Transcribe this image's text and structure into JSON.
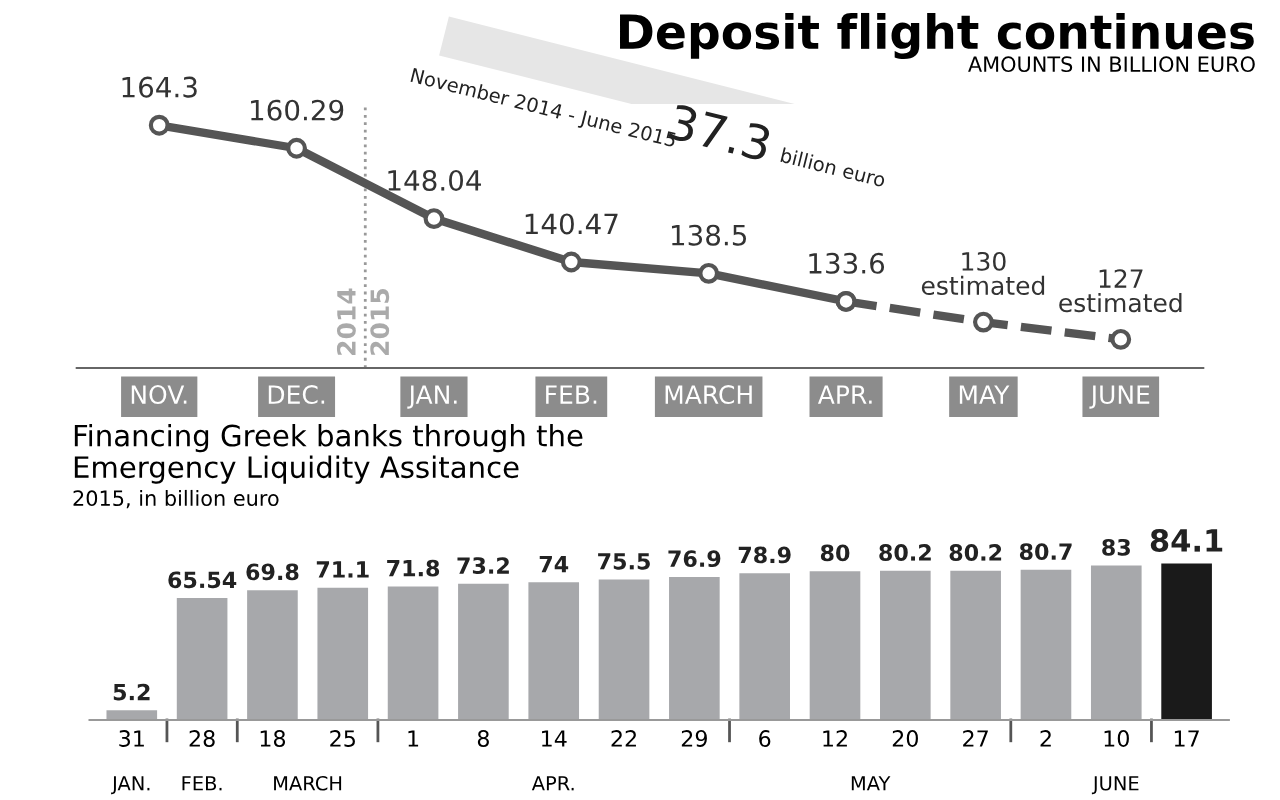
{
  "chart_data": [
    {
      "type": "line",
      "title": "Deposit flight continues",
      "subtitle": "AMOUNTS IN BILLION EURO",
      "categories": [
        "NOV.",
        "DEC.",
        "JAN.",
        "FEB.",
        "MARCH",
        "APR.",
        "MAY",
        "JUNE"
      ],
      "series": [
        {
          "color": "#555555",
          "values": [
            164.3,
            160.29,
            148.04,
            140.47,
            138.5,
            133.6,
            null,
            null
          ],
          "value_labels": [
            "164.3",
            "160.29",
            "148.04",
            "140.47",
            "138.5",
            "133.6",
            null,
            null
          ],
          "line_style": "solid"
        },
        {
          "color": "#555555",
          "values": [
            null,
            null,
            null,
            null,
            null,
            133.6,
            130,
            127
          ],
          "value_labels": [
            null,
            null,
            null,
            null,
            null,
            null,
            "130\nestimated",
            "127\nestimated"
          ],
          "line_style": "dashed"
        }
      ],
      "marker": "circle",
      "ylim": [
        122,
        168
      ],
      "tick_labels": "x",
      "grid": false,
      "legend": false,
      "annotations": [
        "November 2014 - June 2015",
        "37.3",
        "billion euro",
        "2014",
        "2015"
      ]
    },
    {
      "type": "bar",
      "title": "Financing Greek banks through the\nEmergency Liquidity Assitance",
      "subtitle": "2015, in billion euro",
      "categories": [
        "31",
        "28",
        "18",
        "25",
        "1",
        "8",
        "14",
        "22",
        "29",
        "6",
        "12",
        "20",
        "27",
        "2",
        "10",
        "17"
      ],
      "values": [
        5.2,
        65.54,
        69.8,
        71.1,
        71.8,
        73.2,
        74,
        75.5,
        76.9,
        78.9,
        80,
        80.2,
        80.2,
        80.7,
        83,
        84.1
      ],
      "colors": [
        "#a7a8ab",
        "#a7a8ab",
        "#a7a8ab",
        "#a7a8ab",
        "#a7a8ab",
        "#a7a8ab",
        "#a7a8ab",
        "#a7a8ab",
        "#a7a8ab",
        "#a7a8ab",
        "#a7a8ab",
        "#a7a8ab",
        "#a7a8ab",
        "#a7a8ab",
        "#a7a8ab",
        "#1a1a1a"
      ],
      "data_labels": true,
      "ylim": [
        0,
        86
      ],
      "tick_labels": "x",
      "grid": false,
      "legend": false,
      "annotations": [
        "JAN.",
        "FEB.",
        "MARCH",
        "APR.",
        "MAY",
        "JUNE"
      ]
    }
  ]
}
